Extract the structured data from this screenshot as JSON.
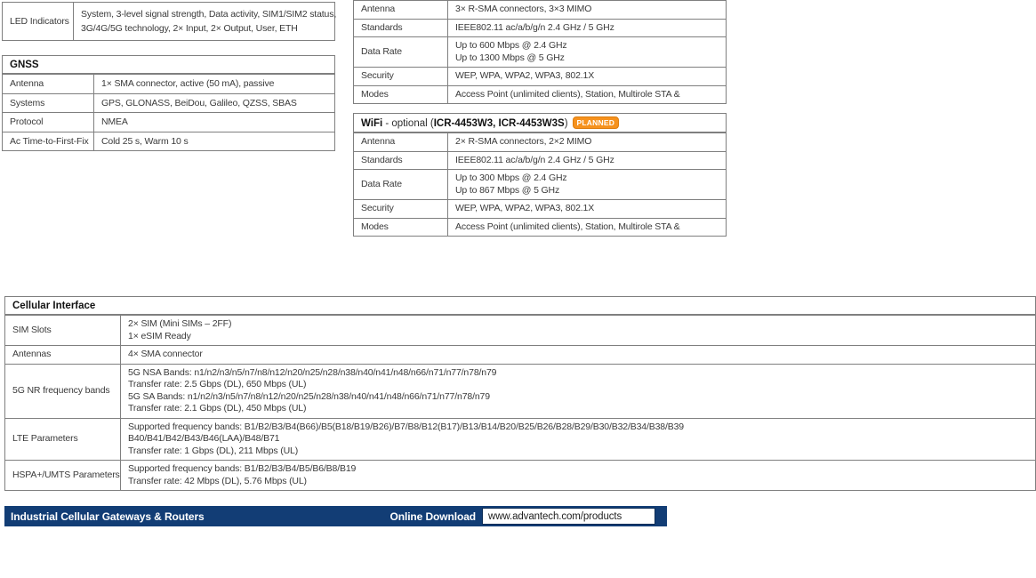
{
  "led_table": {
    "rows": [
      {
        "label": "LED Indicators",
        "value": "System, 3-level signal strength, Data activity, SIM1/SIM2 status,\n3G/4G/5G technology, 2× Input, 2× Output, User, ETH"
      }
    ]
  },
  "gnss_table": {
    "title": "GNSS",
    "rows": [
      {
        "label": "Antenna",
        "value": "1× SMA connector, active (50 mA), passive"
      },
      {
        "label": "Systems",
        "value": "GPS, GLONASS, BeiDou, Galileo, QZSS, SBAS"
      },
      {
        "label": "Protocol",
        "value": "NMEA"
      },
      {
        "label": "Ac Time-to-First-Fix",
        "value": "Cold 25 s, Warm 10 s"
      }
    ]
  },
  "wifi_table_1": {
    "rows": [
      {
        "label": "Antenna",
        "value": "3× R-SMA connectors, 3×3 MIMO"
      },
      {
        "label": "Standards",
        "value": "IEEE802.11 ac/a/b/g/n 2.4 GHz / 5 GHz"
      },
      {
        "label": "Data Rate",
        "value": "Up to 600 Mbps @ 2.4 GHz\nUp to 1300 Mbps @ 5 GHz"
      },
      {
        "label": "Security",
        "value": "WEP, WPA, WPA2, WPA3, 802.1X"
      },
      {
        "label": "Modes",
        "value": "Access Point (unlimited clients), Station, Multirole STA &"
      }
    ]
  },
  "wifi_table_2": {
    "title_product": "WiFi",
    "title_separator": " - optional (",
    "title_models": "ICR-4453W3, ICR-4453W3S",
    "title_close": ")",
    "badge_label": "PLANNED",
    "rows": [
      {
        "label": "Antenna",
        "value": "2× R-SMA connectors, 2×2 MIMO"
      },
      {
        "label": "Standards",
        "value": "IEEE802.11 ac/a/b/g/n 2.4 GHz / 5 GHz"
      },
      {
        "label": "Data Rate",
        "value": "Up to 300 Mbps @ 2.4 GHz\nUp to 867 Mbps @ 5 GHz"
      },
      {
        "label": "Security",
        "value": "WEP, WPA, WPA2, WPA3, 802.1X"
      },
      {
        "label": "Modes",
        "value": "Access Point (unlimited clients), Station, Multirole STA &"
      }
    ]
  },
  "cellular_table": {
    "title": "Cellular Interface",
    "rows": [
      {
        "label": "SIM Slots",
        "value": "2× SIM (Mini SIMs – 2FF)\n1× eSIM Ready"
      },
      {
        "label": "Antennas",
        "value": "4× SMA connector"
      },
      {
        "label": "5G NR frequency bands",
        "value": "5G NSA Bands: n1/n2/n3/n5/n7/n8/n12/n20/n25/n28/n38/n40/n41/n48/n66/n71/n77/n78/n79\nTransfer rate: 2.5 Gbps (DL), 650 Mbps (UL)\n5G SA Bands: n1/n2/n3/n5/n7/n8/n12/n20/n25/n28/n38/n40/n41/n48/n66/n71/n77/n78/n79\nTransfer rate: 2.1 Gbps (DL), 450 Mbps (UL)"
      },
      {
        "label": "LTE Parameters",
        "value": "Supported frequency bands: B1/B2/B3/B4(B66)/B5(B18/B19/B26)/B7/B8/B12(B17)/B13/B14/B20/B25/B26/B28/B29/B30/B32/B34/B38/B39\nB40/B41/B42/B43/B46(LAA)/B48/B71\nTransfer rate: 1 Gbps (DL), 211 Mbps (UL)"
      },
      {
        "label": "HSPA+/UMTS Parameters",
        "value": "Supported frequency bands: B1/B2/B3/B4/B5/B6/B8/B19\nTransfer rate: 42 Mbps (DL), 5.76 Mbps (UL)"
      }
    ]
  },
  "footer": {
    "title": "Industrial Cellular Gateways & Routers",
    "download_label": "Online Download",
    "download_url": "www.advantech.com/products"
  },
  "colors": {
    "footer_navy": "#123D75",
    "badge_orange": "#F6921E",
    "table_border": "#7f7f7f"
  }
}
